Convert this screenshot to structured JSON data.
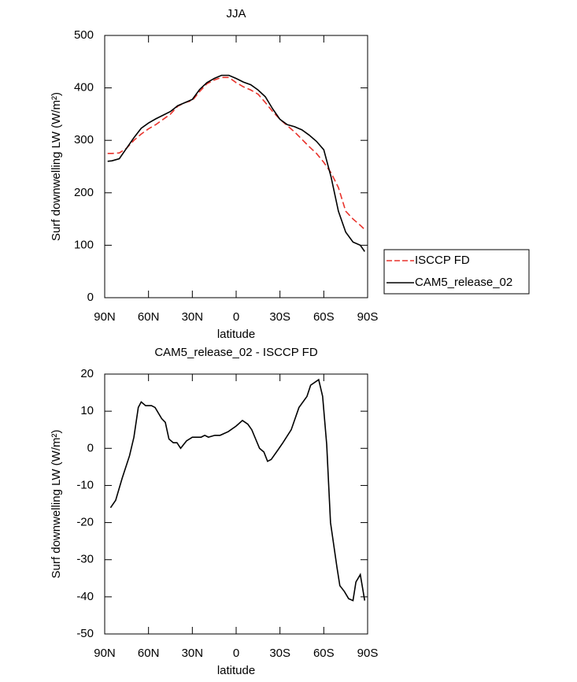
{
  "chart_data": [
    {
      "type": "line",
      "title": "JJA",
      "xlabel": "latitude",
      "ylabel": "Surf downwelling LW (W/m²)",
      "x": [
        88,
        85,
        80,
        75,
        70,
        65,
        60,
        55,
        50,
        45,
        40,
        35,
        30,
        25,
        20,
        15,
        10,
        5,
        0,
        -5,
        -10,
        -15,
        -20,
        -25,
        -30,
        -35,
        -40,
        -45,
        -50,
        -55,
        -60,
        -65,
        -70,
        -75,
        -80,
        -85,
        -88
      ],
      "series": [
        {
          "name": "ISCCP FD",
          "color": "#e8322b",
          "style": "dashed",
          "values": [
            275,
            275,
            276,
            285,
            300,
            312,
            322,
            330,
            340,
            350,
            365,
            372,
            376,
            393,
            408,
            415,
            420,
            420,
            410,
            402,
            396,
            388,
            372,
            355,
            340,
            328,
            316,
            302,
            288,
            275,
            258,
            238,
            210,
            165,
            150,
            138,
            130
          ]
        },
        {
          "name": "CAM5_release_02",
          "color": "#000000",
          "style": "solid",
          "values": [
            260,
            261,
            265,
            285,
            305,
            323,
            333,
            341,
            348,
            355,
            366,
            372,
            378,
            397,
            410,
            418,
            424,
            424,
            418,
            411,
            406,
            396,
            383,
            360,
            340,
            330,
            326,
            320,
            310,
            298,
            282,
            230,
            165,
            125,
            106,
            100,
            88
          ]
        }
      ],
      "xlim": [
        90,
        -90
      ],
      "xticks": [
        {
          "value": 90,
          "label": "90N"
        },
        {
          "value": 60,
          "label": "60N"
        },
        {
          "value": 30,
          "label": "30N"
        },
        0,
        {
          "value": -30,
          "label": "30S"
        },
        {
          "value": -60,
          "label": "60S"
        },
        {
          "value": -90,
          "label": "90S"
        }
      ],
      "ylim": [
        0,
        500
      ],
      "yticks": [
        0,
        100,
        200,
        300,
        400,
        500
      ]
    },
    {
      "type": "line",
      "title": "CAM5_release_02 - ISCCP FD",
      "xlabel": "latitude",
      "ylabel": "Surf downwelling LW (W/m²)",
      "x": [
        86,
        82.5,
        78,
        73,
        70,
        67,
        65,
        62,
        58,
        55.5,
        51,
        48.5,
        46,
        43,
        40.5,
        38,
        34,
        30,
        24,
        21.5,
        19,
        14.6,
        11,
        5.4,
        0,
        -4.3,
        -8,
        -10.7,
        -16,
        -19,
        -21.5,
        -24,
        -28.5,
        -32,
        -37.7,
        -43,
        -48.5,
        -51,
        -56.5,
        -59.2,
        -62,
        -64.6,
        -69,
        -71,
        -74,
        -77,
        -80,
        -82,
        -85,
        -88
      ],
      "series": [
        {
          "color": "#000000",
          "style": "solid",
          "values": [
            -16,
            -14,
            -8,
            -2,
            3,
            11,
            12.5,
            11.5,
            11.5,
            11,
            8,
            7,
            2.5,
            1.5,
            1.5,
            0,
            2,
            3,
            3,
            3.5,
            3,
            3.5,
            3.5,
            4.5,
            6,
            7.5,
            6.5,
            5,
            0,
            -1,
            -3.5,
            -3,
            -0.5,
            1.5,
            5,
            11,
            14,
            17,
            18.5,
            14,
            1,
            -20,
            -32,
            -37,
            -38.5,
            -40.5,
            -41,
            -36,
            -34,
            -41
          ]
        }
      ],
      "xlim": [
        90,
        -90
      ],
      "xticks": [
        {
          "value": 90,
          "label": "90N"
        },
        {
          "value": 60,
          "label": "60N"
        },
        {
          "value": 30,
          "label": "30N"
        },
        0,
        {
          "value": -30,
          "label": "30S"
        },
        {
          "value": -60,
          "label": "60S"
        },
        {
          "value": -90,
          "label": "90S"
        }
      ],
      "ylim": [
        -50,
        20
      ],
      "yticks": [
        -50,
        -40,
        -30,
        -20,
        -10,
        0,
        10,
        20
      ]
    }
  ]
}
